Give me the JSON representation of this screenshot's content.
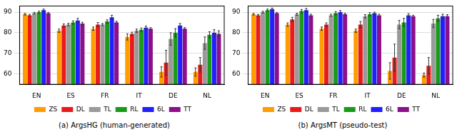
{
  "chart_data": [
    {
      "type": "bar",
      "title": "(a) ArgsHG (human-generated)",
      "categories": [
        "EN",
        "ES",
        "FR",
        "IT",
        "DE",
        "NL"
      ],
      "series": [
        {
          "name": "ZS",
          "color": "#ff9c00",
          "values": [
            89,
            81,
            82,
            78,
            61,
            61
          ],
          "errors": [
            0.4,
            0.8,
            0.8,
            1.5,
            2.5,
            2
          ]
        },
        {
          "name": "DL",
          "color": "#e81a1a",
          "values": [
            88.5,
            83.5,
            84,
            79.5,
            65.5,
            64.5
          ],
          "errors": [
            0.4,
            0.8,
            1,
            0.8,
            6,
            3.5
          ]
        },
        {
          "name": "TL",
          "color": "#9a9a9a",
          "values": [
            89.5,
            84,
            84,
            81,
            77,
            75
          ],
          "errors": [
            0.4,
            0.6,
            0.5,
            0.8,
            3,
            3
          ]
        },
        {
          "name": "RL",
          "color": "#1a9a1a",
          "values": [
            90,
            85,
            85.5,
            81.5,
            80,
            79
          ],
          "errors": [
            0.5,
            0.8,
            0.8,
            0.8,
            2,
            1.5
          ]
        },
        {
          "name": "6L",
          "color": "#1f1fff",
          "values": [
            91,
            86,
            87.5,
            82.5,
            83.5,
            80
          ],
          "errors": [
            0.5,
            1,
            1,
            0.8,
            1,
            1.5
          ]
        },
        {
          "name": "TT",
          "color": "#8b108b",
          "values": [
            89.5,
            84.5,
            85,
            82,
            82,
            79.5
          ],
          "errors": [
            0.4,
            0.6,
            0.6,
            0.5,
            0.5,
            1.5
          ]
        }
      ],
      "ylim": [
        55,
        93
      ],
      "yticks": [
        60,
        70,
        80,
        90
      ],
      "grid": true,
      "legend": "bottom"
    },
    {
      "type": "bar",
      "title": "(b) ArgsMT (pseudo-test)",
      "categories": [
        "EN",
        "ES",
        "FR",
        "IT",
        "DE",
        "NL"
      ],
      "series": [
        {
          "name": "ZS",
          "color": "#ff9c00",
          "values": [
            89,
            84,
            82,
            81,
            61.5,
            59.5
          ],
          "errors": [
            0.4,
            0.8,
            0.8,
            0.8,
            4,
            1
          ]
        },
        {
          "name": "DL",
          "color": "#e81a1a",
          "values": [
            88.5,
            86.5,
            84,
            84,
            68,
            64
          ],
          "errors": [
            0.4,
            1,
            0.8,
            1.5,
            6.5,
            4
          ]
        },
        {
          "name": "TL",
          "color": "#9a9a9a",
          "values": [
            90,
            89,
            88.5,
            88,
            84,
            84.5
          ],
          "errors": [
            0.4,
            0.5,
            0.5,
            0.8,
            2,
            2
          ]
        },
        {
          "name": "RL",
          "color": "#1a9a1a",
          "values": [
            91,
            90.5,
            89.5,
            89,
            85,
            87
          ],
          "errors": [
            0.5,
            0.8,
            0.8,
            0.8,
            2,
            1.5
          ]
        },
        {
          "name": "6L",
          "color": "#1f1fff",
          "values": [
            91.5,
            91,
            90,
            89.5,
            88.5,
            88
          ],
          "errors": [
            0.5,
            0.8,
            0.8,
            0.5,
            0.8,
            1
          ]
        },
        {
          "name": "TT",
          "color": "#8b108b",
          "values": [
            89.5,
            88.5,
            89,
            88.5,
            88,
            88
          ],
          "errors": [
            0.4,
            0.5,
            0.5,
            0.5,
            0.5,
            0.8
          ]
        }
      ],
      "ylim": [
        55,
        93
      ],
      "yticks": [
        60,
        70,
        80,
        90
      ],
      "grid": true,
      "legend": "bottom"
    }
  ]
}
